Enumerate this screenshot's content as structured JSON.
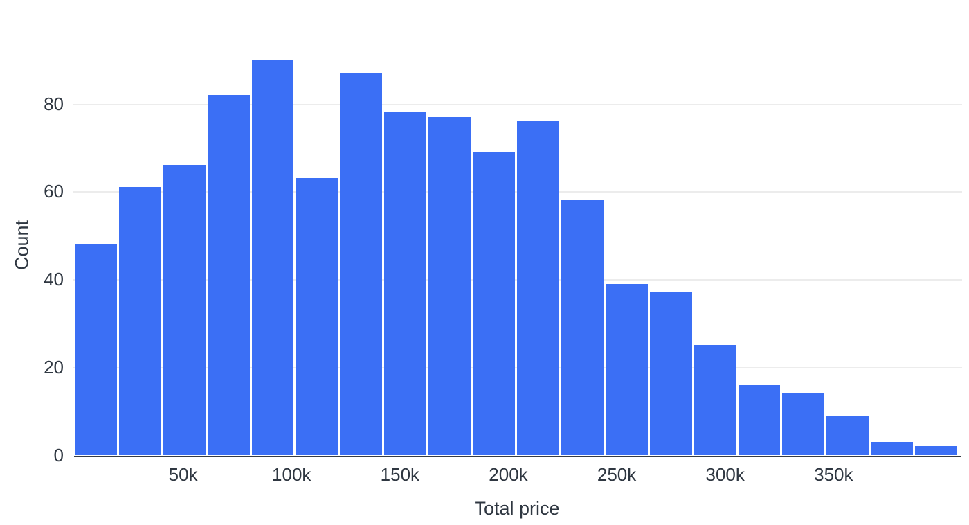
{
  "chart_data": {
    "type": "bar",
    "subtype": "histogram",
    "title": "",
    "xlabel": "Total price",
    "ylabel": "Count",
    "bin_count": 20,
    "values": [
      48,
      61,
      66,
      82,
      90,
      63,
      87,
      78,
      77,
      69,
      76,
      58,
      39,
      37,
      25,
      16,
      14,
      9,
      3,
      2
    ],
    "x_ticks": [
      {
        "label": "50k",
        "value": 50
      },
      {
        "label": "100k",
        "value": 100
      },
      {
        "label": "150k",
        "value": 150
      },
      {
        "label": "200k",
        "value": 200
      },
      {
        "label": "250k",
        "value": 250
      },
      {
        "label": "300k",
        "value": 300
      },
      {
        "label": "350k",
        "value": 350
      }
    ],
    "x_domain_k": [
      0,
      408
    ],
    "y_ticks": [
      0,
      20,
      40,
      60,
      80
    ],
    "y_axis_max": 95.7,
    "grid": true,
    "legend": false,
    "colors": {
      "bar": "#3b6ff5",
      "grid": "#ececec",
      "axis_line": "#363c44",
      "text": "#2f3741",
      "background": "#ffffff"
    }
  }
}
